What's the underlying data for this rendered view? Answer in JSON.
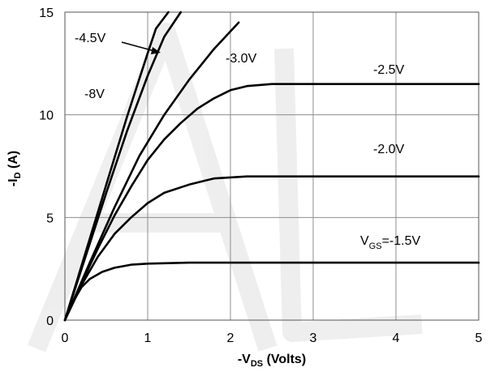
{
  "chart_data": {
    "type": "line",
    "title": "",
    "xlabel": {
      "prefix": "-V",
      "sub": "DS",
      "suffix": " (Volts)"
    },
    "ylabel": {
      "prefix": "-I",
      "sub": "D",
      "suffix": " (A)"
    },
    "xlim": [
      0,
      5
    ],
    "ylim": [
      0,
      15
    ],
    "x_ticks": [
      "0",
      "1",
      "2",
      "3",
      "4",
      "5"
    ],
    "y_ticks": [
      "0",
      "5",
      "10",
      "15"
    ],
    "grid": true,
    "watermark": "AL",
    "series": [
      {
        "name": "V_GS=-1.5V",
        "label": {
          "prefix": "V",
          "sub": "GS",
          "suffix": "=-1.5V"
        },
        "x": [
          0,
          0.1,
          0.2,
          0.3,
          0.45,
          0.6,
          0.8,
          1.0,
          1.5,
          2.0,
          3.0,
          4.0,
          5.0
        ],
        "y": [
          0,
          0.9,
          1.6,
          2.0,
          2.35,
          2.55,
          2.7,
          2.75,
          2.8,
          2.8,
          2.8,
          2.8,
          2.8
        ]
      },
      {
        "name": "-2.0V",
        "label": {
          "prefix": "-2.0V"
        },
        "x": [
          0,
          0.2,
          0.4,
          0.6,
          0.8,
          1.0,
          1.2,
          1.5,
          1.8,
          2.2,
          3.0,
          4.0,
          5.0
        ],
        "y": [
          0,
          1.7,
          3.1,
          4.2,
          5.0,
          5.7,
          6.2,
          6.6,
          6.9,
          7.0,
          7.0,
          7.0,
          7.0
        ]
      },
      {
        "name": "-2.5V",
        "label": {
          "prefix": "-2.5V"
        },
        "x": [
          0,
          0.2,
          0.4,
          0.6,
          0.8,
          1.0,
          1.2,
          1.4,
          1.6,
          1.8,
          2.0,
          2.2,
          2.5,
          3.0,
          4.0,
          5.0
        ],
        "y": [
          0,
          1.8,
          3.5,
          5.1,
          6.5,
          7.8,
          8.8,
          9.6,
          10.3,
          10.8,
          11.2,
          11.4,
          11.5,
          11.5,
          11.5,
          11.5
        ]
      },
      {
        "name": "-3.0V",
        "label": {
          "prefix": "-3.0V"
        },
        "x": [
          0,
          0.3,
          0.6,
          0.9,
          1.2,
          1.5,
          1.8,
          2.1
        ],
        "y": [
          0,
          2.8,
          5.5,
          8.0,
          10.0,
          11.7,
          13.2,
          14.5
        ]
      },
      {
        "name": "-4.5V",
        "label": {
          "prefix": "-4.5V"
        },
        "x": [
          0,
          0.25,
          0.5,
          0.75,
          1.0,
          1.2,
          1.4
        ],
        "y": [
          0,
          3.1,
          6.2,
          9.2,
          11.9,
          13.8,
          15.0
        ]
      },
      {
        "name": "-8V",
        "label": {
          "prefix": "-8V"
        },
        "x": [
          0,
          0.25,
          0.5,
          0.75,
          1.0,
          1.1,
          1.25
        ],
        "y": [
          0,
          3.3,
          6.6,
          9.9,
          13.0,
          14.2,
          15.0
        ]
      }
    ]
  }
}
